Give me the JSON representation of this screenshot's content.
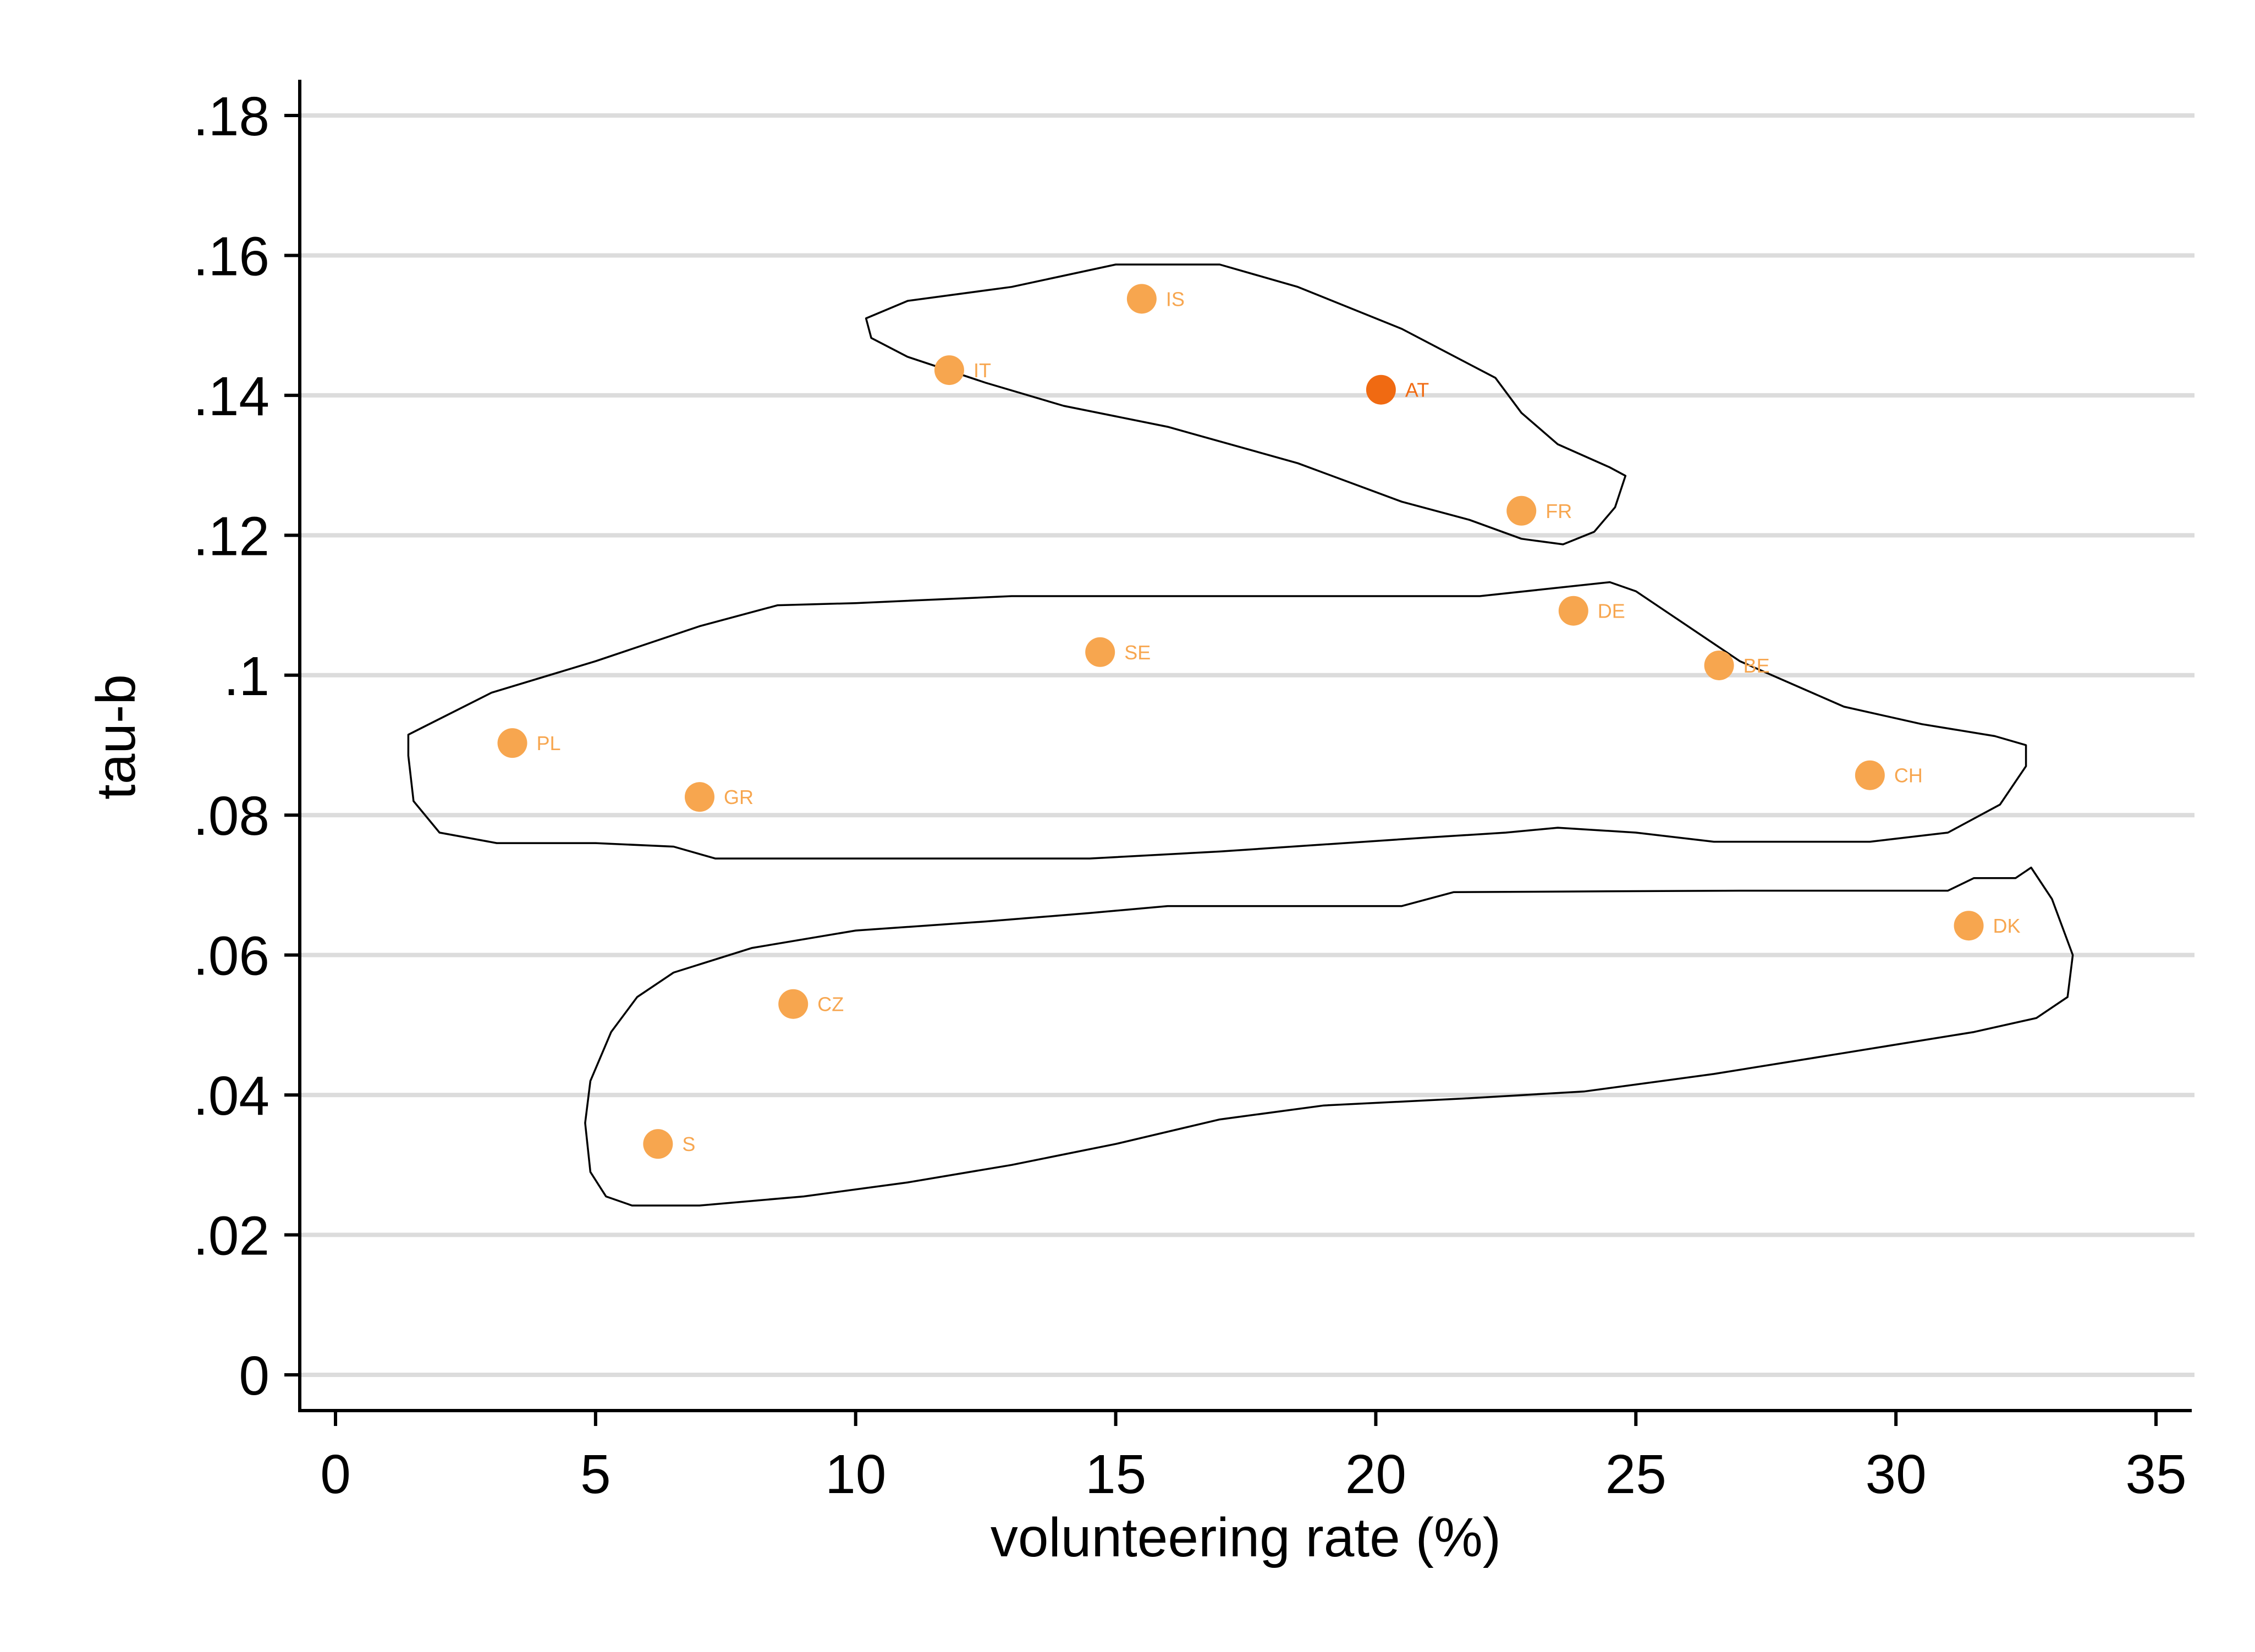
{
  "chart_data": {
    "type": "scatter",
    "title": "",
    "xlabel": "volunteering rate (%)",
    "ylabel": "tau-b",
    "xlim": [
      0,
      35
    ],
    "ylim": [
      0,
      0.18
    ],
    "x_ticks": [
      0,
      5,
      10,
      15,
      20,
      25,
      30,
      35
    ],
    "x_tick_labels": [
      "0",
      "5",
      "10",
      "15",
      "20",
      "25",
      "30",
      "35"
    ],
    "y_ticks": [
      0,
      0.02,
      0.04,
      0.06,
      0.08,
      0.1,
      0.12,
      0.14,
      0.16,
      0.18
    ],
    "y_tick_labels": [
      "0",
      ".02",
      ".04",
      ".06",
      ".08",
      ".1",
      ".12",
      ".14",
      ".16",
      ".18"
    ],
    "grid": "horizontal",
    "marker_color": "#f7a64f",
    "highlight_color": "#f06a12",
    "points": [
      {
        "label": "IS",
        "x": 15.5,
        "y": 0.1538
      },
      {
        "label": "IT",
        "x": 11.8,
        "y": 0.1436
      },
      {
        "label": "AT",
        "x": 20.1,
        "y": 0.1408,
        "highlight": true
      },
      {
        "label": "FR",
        "x": 22.8,
        "y": 0.1235
      },
      {
        "label": "DE",
        "x": 23.8,
        "y": 0.1092
      },
      {
        "label": "SE",
        "x": 14.7,
        "y": 0.1033
      },
      {
        "label": "BE",
        "x": 26.6,
        "y": 0.1014
      },
      {
        "label": "PL",
        "x": 3.4,
        "y": 0.0903
      },
      {
        "label": "GR",
        "x": 7.0,
        "y": 0.0826
      },
      {
        "label": "CH",
        "x": 29.5,
        "y": 0.0857
      },
      {
        "label": "DK",
        "x": 31.4,
        "y": 0.0642
      },
      {
        "label": "CZ",
        "x": 8.8,
        "y": 0.053
      },
      {
        "label": "S",
        "x": 6.2,
        "y": 0.033
      }
    ],
    "groups": [
      {
        "members": [
          "IS",
          "IT",
          "AT",
          "FR"
        ],
        "outline": [
          [
            10.2,
            0.151
          ],
          [
            11.0,
            0.1535
          ],
          [
            13.0,
            0.1555
          ],
          [
            15.0,
            0.1587
          ],
          [
            17.0,
            0.1587
          ],
          [
            18.5,
            0.1555
          ],
          [
            20.5,
            0.1495
          ],
          [
            22.3,
            0.1425
          ],
          [
            22.8,
            0.1375
          ],
          [
            23.5,
            0.133
          ],
          [
            24.5,
            0.1297
          ],
          [
            24.8,
            0.1285
          ],
          [
            24.6,
            0.124
          ],
          [
            24.2,
            0.1205
          ],
          [
            23.6,
            0.1187
          ],
          [
            22.8,
            0.1195
          ],
          [
            21.8,
            0.1222
          ],
          [
            20.5,
            0.1248
          ],
          [
            18.5,
            0.1303
          ],
          [
            16.0,
            0.1355
          ],
          [
            14.0,
            0.1385
          ],
          [
            12.5,
            0.1418
          ],
          [
            11.0,
            0.1455
          ],
          [
            10.3,
            0.1482
          ],
          [
            10.2,
            0.151
          ]
        ]
      },
      {
        "members": [
          "DE",
          "SE",
          "BE",
          "PL",
          "GR",
          "CH"
        ],
        "outline": [
          [
            1.4,
            0.0885
          ],
          [
            1.4,
            0.0915
          ],
          [
            3.0,
            0.0975
          ],
          [
            5.0,
            0.102
          ],
          [
            7.0,
            0.107
          ],
          [
            8.5,
            0.11
          ],
          [
            10.0,
            0.1103
          ],
          [
            13.0,
            0.1113
          ],
          [
            16.0,
            0.1113
          ],
          [
            19.0,
            0.1113
          ],
          [
            22.0,
            0.1113
          ],
          [
            23.5,
            0.1125
          ],
          [
            24.5,
            0.1133
          ],
          [
            25.0,
            0.112
          ],
          [
            26.0,
            0.107
          ],
          [
            27.0,
            0.102
          ],
          [
            29.0,
            0.0955
          ],
          [
            30.5,
            0.093
          ],
          [
            31.9,
            0.0913
          ],
          [
            32.5,
            0.09
          ],
          [
            32.5,
            0.087
          ],
          [
            32.0,
            0.0815
          ],
          [
            31.0,
            0.0775
          ],
          [
            29.5,
            0.0762
          ],
          [
            26.5,
            0.0762
          ],
          [
            25.0,
            0.0775
          ],
          [
            23.5,
            0.0782
          ],
          [
            22.5,
            0.0775
          ],
          [
            21.0,
            0.0768
          ],
          [
            17.0,
            0.0748
          ],
          [
            14.5,
            0.0738
          ],
          [
            12.0,
            0.0738
          ],
          [
            9.0,
            0.0738
          ],
          [
            7.3,
            0.0738
          ],
          [
            6.5,
            0.0755
          ],
          [
            5.0,
            0.076
          ],
          [
            3.1,
            0.076
          ],
          [
            2.0,
            0.0775
          ],
          [
            1.5,
            0.082
          ],
          [
            1.4,
            0.0885
          ]
        ]
      },
      {
        "members": [
          "DK",
          "CZ",
          "S"
        ],
        "outline": [
          [
            32.3,
            0.071
          ],
          [
            31.5,
            0.071
          ],
          [
            31.0,
            0.0692
          ],
          [
            27.0,
            0.0692
          ],
          [
            21.5,
            0.069
          ],
          [
            20.5,
            0.067
          ],
          [
            16.0,
            0.067
          ],
          [
            14.5,
            0.066
          ],
          [
            12.5,
            0.0648
          ],
          [
            10.0,
            0.0635
          ],
          [
            8.0,
            0.061
          ],
          [
            6.5,
            0.0575
          ],
          [
            5.8,
            0.054
          ],
          [
            5.3,
            0.049
          ],
          [
            4.9,
            0.042
          ],
          [
            4.8,
            0.036
          ],
          [
            4.9,
            0.029
          ],
          [
            5.2,
            0.0255
          ],
          [
            5.7,
            0.0242
          ],
          [
            7.0,
            0.0242
          ],
          [
            9.0,
            0.0255
          ],
          [
            11.0,
            0.0275
          ],
          [
            13.0,
            0.03
          ],
          [
            15.0,
            0.033
          ],
          [
            17.0,
            0.0365
          ],
          [
            19.0,
            0.0385
          ],
          [
            21.7,
            0.0395
          ],
          [
            24.0,
            0.0405
          ],
          [
            26.5,
            0.043
          ],
          [
            29.0,
            0.046
          ],
          [
            31.5,
            0.049
          ],
          [
            32.7,
            0.051
          ],
          [
            33.3,
            0.054
          ],
          [
            33.4,
            0.06
          ],
          [
            33.0,
            0.068
          ],
          [
            32.6,
            0.0725
          ],
          [
            32.3,
            0.071
          ]
        ]
      }
    ]
  }
}
